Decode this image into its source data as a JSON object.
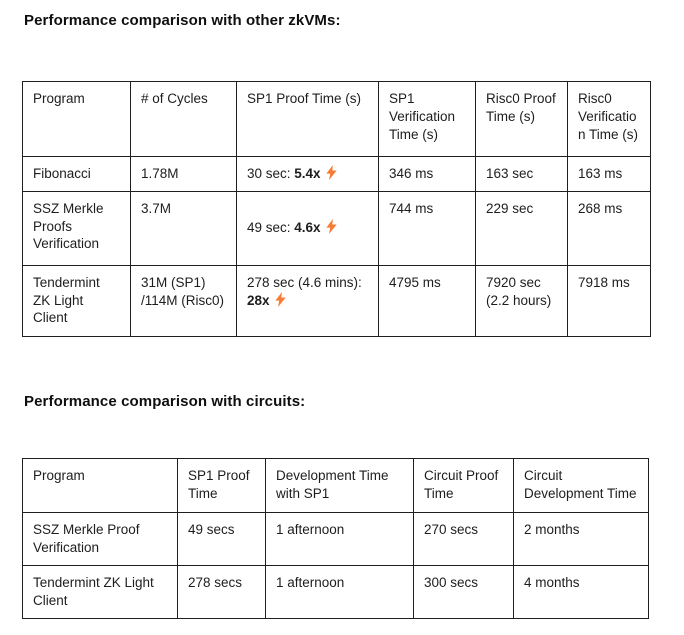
{
  "headings": {
    "zkvms": "Performance comparison with other zkVMs:",
    "circuits": "Performance comparison with circuits:"
  },
  "colors": {
    "lightning_bolt": "#F87B33",
    "text": "#1D1D1F",
    "border": "#1F1F1F"
  },
  "icons": {
    "lightning": "lightning-bolt-icon"
  },
  "tables": [
    {
      "name": "zkvm-comparison",
      "columns": [
        "Program",
        "# of Cycles",
        "SP1 Proof Time (s)",
        "SP1 Verification Time (s)",
        "Risc0 Proof Time (s)",
        "Risc0 Verification Time (s)"
      ],
      "rows": [
        [
          "Fibonacci",
          "1.78M",
          {
            "pre": "30 sec: ",
            "bold": "5.4x",
            "bolt": true
          },
          "346 ms",
          "163 sec",
          "163 ms"
        ],
        [
          "SSZ Merkle Proofs Verification",
          "3.7M",
          {
            "pre": "49 sec: ",
            "bold": "4.6x",
            "bolt": true
          },
          "744 ms",
          "229 sec",
          "268 ms"
        ],
        [
          "Tendermint ZK Light Client",
          "31M (SP1)\n/114M (Risc0)",
          {
            "pre": "278 sec (4.6 mins): ",
            "bold": "28x",
            "bolt": true
          },
          "4795 ms",
          "7920 sec\n(2.2 hours)",
          "7918 ms"
        ]
      ]
    },
    {
      "name": "circuits-comparison",
      "columns": [
        "Program",
        "SP1 Proof Time",
        "Development Time with SP1",
        "Circuit Proof Time",
        "Circuit Development Time"
      ],
      "rows": [
        [
          "SSZ Merkle Proof Verification",
          "49 secs",
          "1 afternoon",
          "270 secs",
          "2 months"
        ],
        [
          "Tendermint ZK Light Client",
          "278 secs",
          "1 afternoon",
          "300 secs",
          "4 months"
        ]
      ]
    }
  ]
}
